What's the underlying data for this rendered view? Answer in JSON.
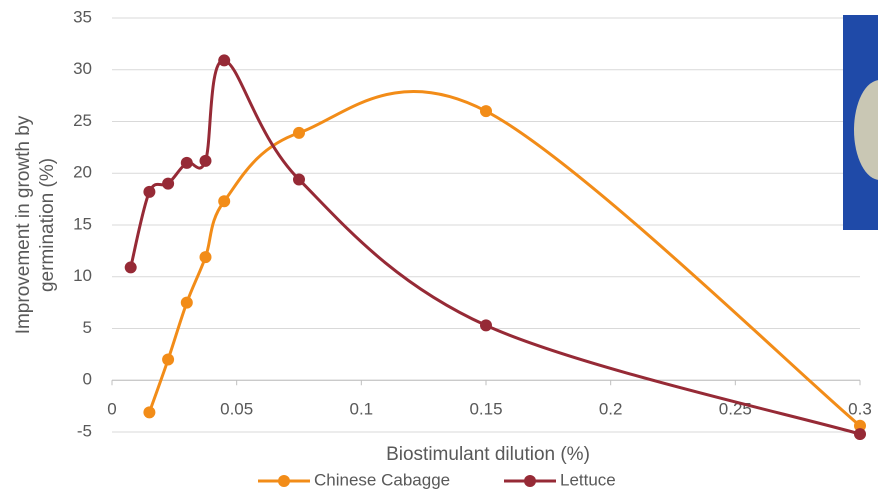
{
  "chart_data": {
    "type": "line",
    "xlabel": "Biostimulant dilution (%)",
    "ylabel": [
      "Improvement in growth by",
      "germination (%)"
    ],
    "xlim": [
      0,
      0.3
    ],
    "xticks": [
      0,
      0.05,
      0.1,
      0.15,
      0.2,
      0.25,
      0.3
    ],
    "ylim": [
      -5,
      35
    ],
    "yticks": [
      -5,
      0,
      5,
      10,
      15,
      20,
      25,
      30,
      35
    ],
    "grid": true,
    "legend": "bottom",
    "series": [
      {
        "name": "Chinese Cabagge",
        "color": "#f28c18",
        "x": [
          0.015,
          0.0225,
          0.03,
          0.0375,
          0.045,
          0.075,
          0.15,
          0.3
        ],
        "values": [
          -3.1,
          2,
          7.5,
          11.9,
          17.3,
          23.9,
          26,
          -4.4
        ]
      },
      {
        "name": "Lettuce",
        "color": "#962a36",
        "x": [
          0.0075,
          0.015,
          0.0225,
          0.03,
          0.0375,
          0.045,
          0.075,
          0.15,
          0.3
        ],
        "values": [
          10.9,
          18.2,
          19,
          21,
          21.2,
          30.9,
          19.4,
          5.3,
          -5.2
        ]
      }
    ]
  }
}
